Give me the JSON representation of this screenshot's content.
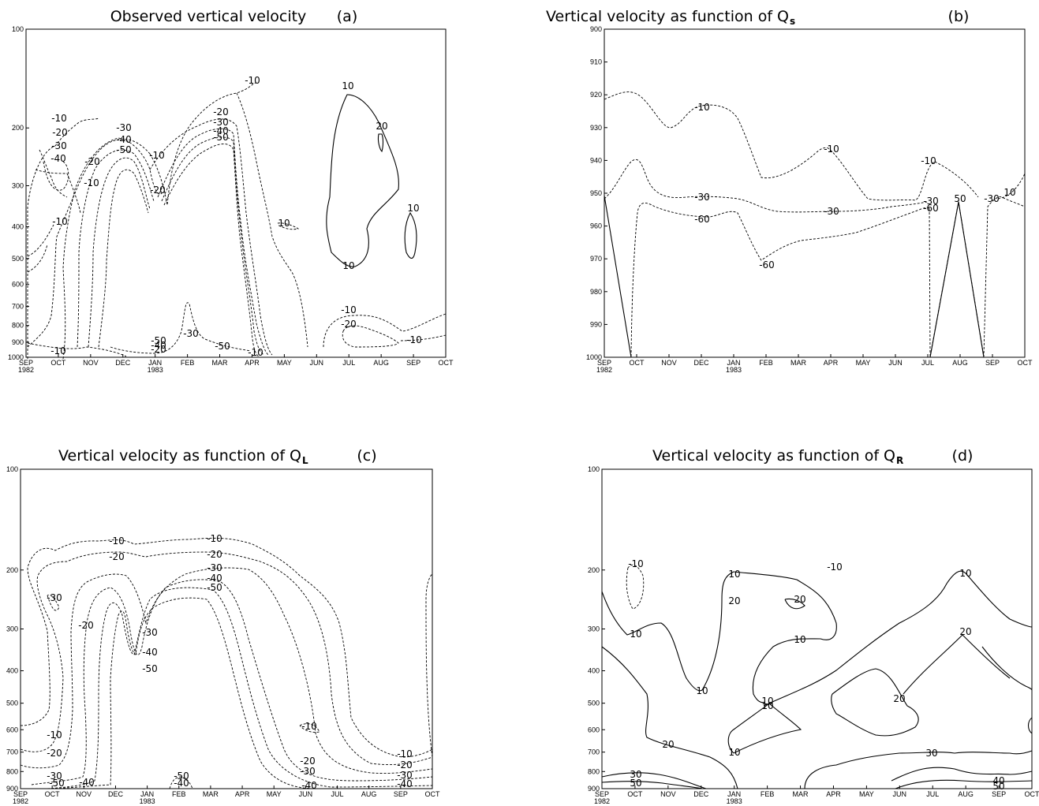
{
  "months": [
    "SEP",
    "OCT",
    "NOV",
    "DEC",
    "JAN",
    "FEB",
    "MAR",
    "APR",
    "MAY",
    "JUN",
    "JUL",
    "AUG",
    "SEP",
    "OCT"
  ],
  "years": {
    "start": "1982",
    "mid": "1983"
  },
  "chart_data": [
    {
      "type": "contour",
      "title": "Observed vertical velocity",
      "panel_label": "(a)",
      "x_ticks": [
        "SEP",
        "OCT",
        "NOV",
        "DEC",
        "JAN",
        "FEB",
        "MAR",
        "APR",
        "MAY",
        "JUN",
        "JUL",
        "AUG",
        "SEP",
        "OCT"
      ],
      "y_ticks": [
        "100",
        "200",
        "300",
        "400",
        "500",
        "600",
        "700",
        "800",
        "900",
        "1000"
      ],
      "ylim": [
        1000,
        100
      ],
      "y_scale": "log",
      "x_range": [
        "SEP 1982",
        "OCT 1983"
      ],
      "contour_labels": [
        "-10",
        "-10",
        "-20",
        "-30",
        "-40",
        "-20",
        "-10",
        "-30",
        "-40",
        "-50",
        "-10",
        "-20",
        "-10",
        "-20",
        "-30",
        "-40",
        "-50",
        "-10",
        "10",
        "20",
        "10",
        "10",
        "10",
        "-10",
        "-20",
        "-10",
        "-30",
        "-50",
        "-40",
        "-20",
        "-50",
        "-10"
      ]
    },
    {
      "type": "contour",
      "title": "Vertical velocity as function of Q",
      "title_sub": "s",
      "panel_label": "(b)",
      "x_ticks": [
        "SEP",
        "OCT",
        "NOV",
        "DEC",
        "JAN",
        "FEB",
        "MAR",
        "APR",
        "MAY",
        "JUN",
        "JUL",
        "AUG",
        "SEP",
        "OCT"
      ],
      "y_ticks": [
        "900",
        "910",
        "920",
        "930",
        "940",
        "950",
        "960",
        "970",
        "980",
        "990",
        "1000"
      ],
      "ylim": [
        1000,
        900
      ],
      "y_scale": "linear",
      "x_range": [
        "SEP 1982",
        "OCT 1983"
      ],
      "contour_labels": [
        "-10",
        "-10",
        "-10",
        "-30",
        "-60",
        "-30",
        "-60",
        "-30",
        "-60",
        "50",
        "-30",
        "10"
      ]
    },
    {
      "type": "contour",
      "title": "Vertical velocity as function of Q",
      "title_sub": "L",
      "panel_label": "(c)",
      "x_ticks": [
        "SEP",
        "OCT",
        "NOV",
        "DEC",
        "JAN",
        "FEB",
        "MAR",
        "APR",
        "MAY",
        "JUN",
        "JUL",
        "AUG",
        "SEP",
        "OCT"
      ],
      "y_ticks": [
        "100",
        "200",
        "300",
        "400",
        "500",
        "600",
        "700",
        "800",
        "900"
      ],
      "ylim": [
        900,
        100
      ],
      "y_scale": "log",
      "x_range": [
        "SEP 1982",
        "OCT 1983"
      ],
      "contour_labels": [
        "-10",
        "-20",
        "-10",
        "-20",
        "-30",
        "-40",
        "-50",
        "-30",
        "-20",
        "-30",
        "-40",
        "-50",
        "-10",
        "-20",
        "-30",
        "-50",
        "-40",
        "-10",
        "-20",
        "-30",
        "-40",
        "-10",
        "-20",
        "-30",
        "-40"
      ]
    },
    {
      "type": "contour",
      "title": "Vertical velocity as function of Q",
      "title_sub": "R",
      "panel_label": "(d)",
      "x_ticks": [
        "SEP",
        "OCT",
        "NOV",
        "DEC",
        "JAN",
        "FEB",
        "MAR",
        "APR",
        "MAY",
        "JUN",
        "JUL",
        "AUG",
        "SEP",
        "OCT"
      ],
      "y_ticks": [
        "100",
        "200",
        "300",
        "400",
        "500",
        "600",
        "700",
        "800",
        "900"
      ],
      "ylim": [
        900,
        100
      ],
      "y_scale": "log",
      "x_range": [
        "SEP 1982",
        "OCT 1983"
      ],
      "contour_labels": [
        "-10",
        "10",
        "10",
        "20",
        "20",
        "10",
        "10",
        "10",
        "10",
        "20",
        "20",
        "10",
        "20",
        "10",
        "30",
        "30",
        "50",
        "40",
        "50",
        "-10"
      ]
    }
  ]
}
